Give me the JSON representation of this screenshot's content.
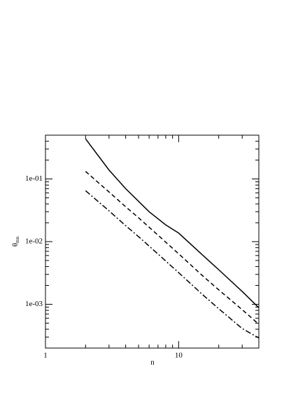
{
  "chart_data": {
    "type": "line",
    "xlabel": "n",
    "ylabel": {
      "symbol": "θ",
      "subscript": "mn"
    },
    "xscale": "log",
    "yscale": "log",
    "xlim": [
      1,
      40
    ],
    "ylim": [
      0.0002,
      0.5
    ],
    "xticks": [
      1,
      10
    ],
    "yticks": [
      {
        "value": 0.001,
        "label": "1e-03"
      },
      {
        "value": 0.01,
        "label": "1e-02"
      },
      {
        "value": 0.1,
        "label": "1e-01"
      }
    ],
    "minor_xticks": [
      2,
      3,
      4,
      5,
      6,
      7,
      8,
      9,
      20,
      30
    ],
    "minor_yticks": [
      0.0003,
      0.0004,
      0.0005,
      0.0006,
      0.0007,
      0.0008,
      0.0009,
      0.002,
      0.003,
      0.004,
      0.005,
      0.006,
      0.007,
      0.008,
      0.009,
      0.02,
      0.03,
      0.04,
      0.05,
      0.06,
      0.07,
      0.08,
      0.09,
      0.2,
      0.3,
      0.4
    ],
    "x": [
      2,
      3,
      4,
      5,
      6,
      8,
      10,
      15,
      20,
      30,
      40
    ],
    "series": [
      {
        "color": "#000000",
        "dash": "solid",
        "values": [
          0.437,
          0.139,
          0.07,
          0.044,
          0.03,
          0.0185,
          0.0137,
          0.0062,
          0.00356,
          0.0016,
          0.00088
        ]
      },
      {
        "color": "#000000",
        "dash": "dashed",
        "values": [
          0.132,
          0.062,
          0.036,
          0.024,
          0.017,
          0.0098,
          0.0064,
          0.0029,
          0.0017,
          0.00082,
          0.00048
        ]
      },
      {
        "color": "#000000",
        "dash": "dashdot",
        "values": [
          0.065,
          0.031,
          0.018,
          0.012,
          0.0085,
          0.0049,
          0.0032,
          0.00145,
          0.00085,
          0.00041,
          0.00029
        ]
      }
    ]
  }
}
